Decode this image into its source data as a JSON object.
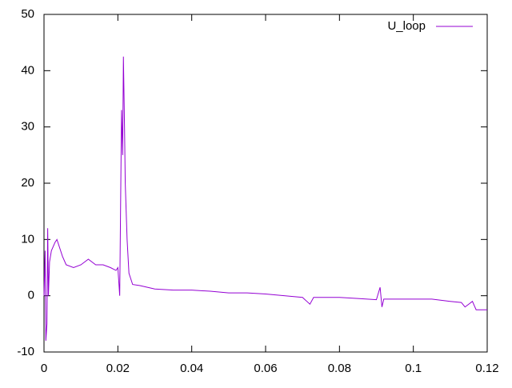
{
  "chart_data": {
    "type": "line",
    "series": [
      {
        "name": "U_loop",
        "color": "#9400d3",
        "x": [
          0,
          0.0003,
          0.0005,
          0.0008,
          0.001,
          0.0012,
          0.0015,
          0.002,
          0.003,
          0.0035,
          0.004,
          0.005,
          0.006,
          0.008,
          0.01,
          0.012,
          0.014,
          0.016,
          0.018,
          0.0195,
          0.02,
          0.0205,
          0.0208,
          0.021,
          0.0213,
          0.0215,
          0.0218,
          0.022,
          0.0225,
          0.023,
          0.024,
          0.026,
          0.028,
          0.03,
          0.035,
          0.04,
          0.045,
          0.05,
          0.055,
          0.06,
          0.065,
          0.07,
          0.072,
          0.073,
          0.08,
          0.085,
          0.09,
          0.091,
          0.0915,
          0.092,
          0.1,
          0.105,
          0.11,
          0.113,
          0.114,
          0.115,
          0.116,
          0.117,
          0.118,
          0.12
        ],
        "values": [
          0,
          8,
          -8,
          -5,
          12,
          0,
          6,
          8,
          9.5,
          10,
          9,
          7,
          5.5,
          5,
          5.5,
          6.5,
          5.5,
          5.5,
          5,
          4.5,
          5,
          0,
          20,
          33,
          25,
          42.5,
          30,
          20,
          10,
          4,
          2,
          1.8,
          1.5,
          1.2,
          1,
          1,
          0.8,
          0.5,
          0.5,
          0.3,
          0,
          -0.3,
          -1.5,
          -0.3,
          -0.3,
          -0.5,
          -0.7,
          1.5,
          -2,
          -0.6,
          -0.6,
          -0.6,
          -1,
          -1.2,
          -2,
          -1.5,
          -1,
          -2.5,
          -2.5,
          -2.5
        ]
      }
    ],
    "xlim": [
      0,
      0.12
    ],
    "xticks": [
      0,
      0.02,
      0.04,
      0.06,
      0.08,
      0.1,
      0.12
    ],
    "ylim": [
      -10,
      50
    ],
    "yticks": [
      -10,
      0,
      10,
      20,
      30,
      40,
      50
    ],
    "legend": "top-right"
  }
}
